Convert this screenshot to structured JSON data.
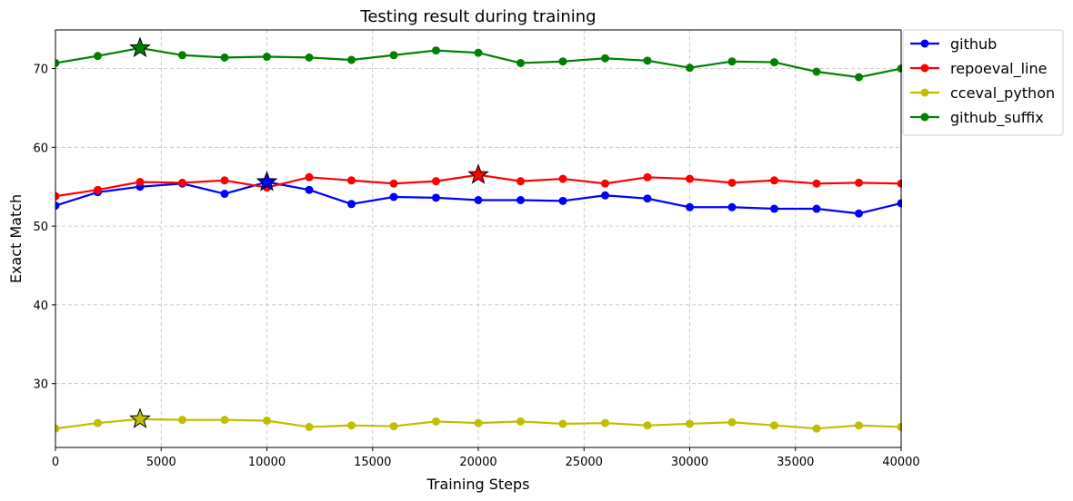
{
  "chart_data": {
    "type": "line",
    "title": "Testing result during training",
    "xlabel": "Training Steps",
    "ylabel": "Exact Match",
    "xlim": [
      0,
      40000
    ],
    "ylim": [
      21.9,
      74.9
    ],
    "xticks": [
      0,
      5000,
      10000,
      15000,
      20000,
      25000,
      30000,
      35000,
      40000
    ],
    "yticks": [
      30,
      40,
      50,
      60,
      70
    ],
    "grid": true,
    "legend_position": "outside top-right",
    "x": [
      0,
      2000,
      4000,
      6000,
      8000,
      10000,
      12000,
      14000,
      16000,
      18000,
      20000,
      22000,
      24000,
      26000,
      28000,
      30000,
      32000,
      34000,
      36000,
      38000,
      40000
    ],
    "series": [
      {
        "name": "github",
        "color": "#0000ff",
        "values": [
          52.6,
          54.3,
          55.0,
          55.4,
          54.1,
          55.6,
          54.6,
          52.8,
          53.7,
          53.6,
          53.3,
          53.3,
          53.2,
          53.9,
          53.5,
          52.4,
          52.4,
          52.2,
          52.2,
          51.6,
          52.9
        ],
        "best_x": 10000,
        "best_y": 55.6
      },
      {
        "name": "repoeval_line",
        "color": "#ff0000",
        "values": [
          53.8,
          54.6,
          55.6,
          55.5,
          55.8,
          54.9,
          56.2,
          55.8,
          55.4,
          55.7,
          56.5,
          55.7,
          56.0,
          55.4,
          56.2,
          56.0,
          55.5,
          55.8,
          55.4,
          55.5,
          55.4
        ],
        "best_x": 20000,
        "best_y": 56.5
      },
      {
        "name": "cceval_python",
        "color": "#bfbf00",
        "values": [
          24.3,
          25.0,
          25.5,
          25.4,
          25.4,
          25.3,
          24.5,
          24.7,
          24.6,
          25.2,
          25.0,
          25.2,
          24.9,
          25.0,
          24.7,
          24.9,
          25.1,
          24.7,
          24.3,
          24.7,
          24.5
        ],
        "best_x": 4000,
        "best_y": 25.5
      },
      {
        "name": "github_suffix",
        "color": "#008000",
        "values": [
          70.7,
          71.6,
          72.6,
          71.7,
          71.4,
          71.5,
          71.4,
          71.1,
          71.7,
          72.3,
          72.0,
          70.7,
          70.9,
          71.3,
          71.0,
          70.1,
          70.9,
          70.8,
          69.6,
          68.9,
          70.0
        ],
        "best_x": 4000,
        "best_y": 72.6
      }
    ]
  }
}
